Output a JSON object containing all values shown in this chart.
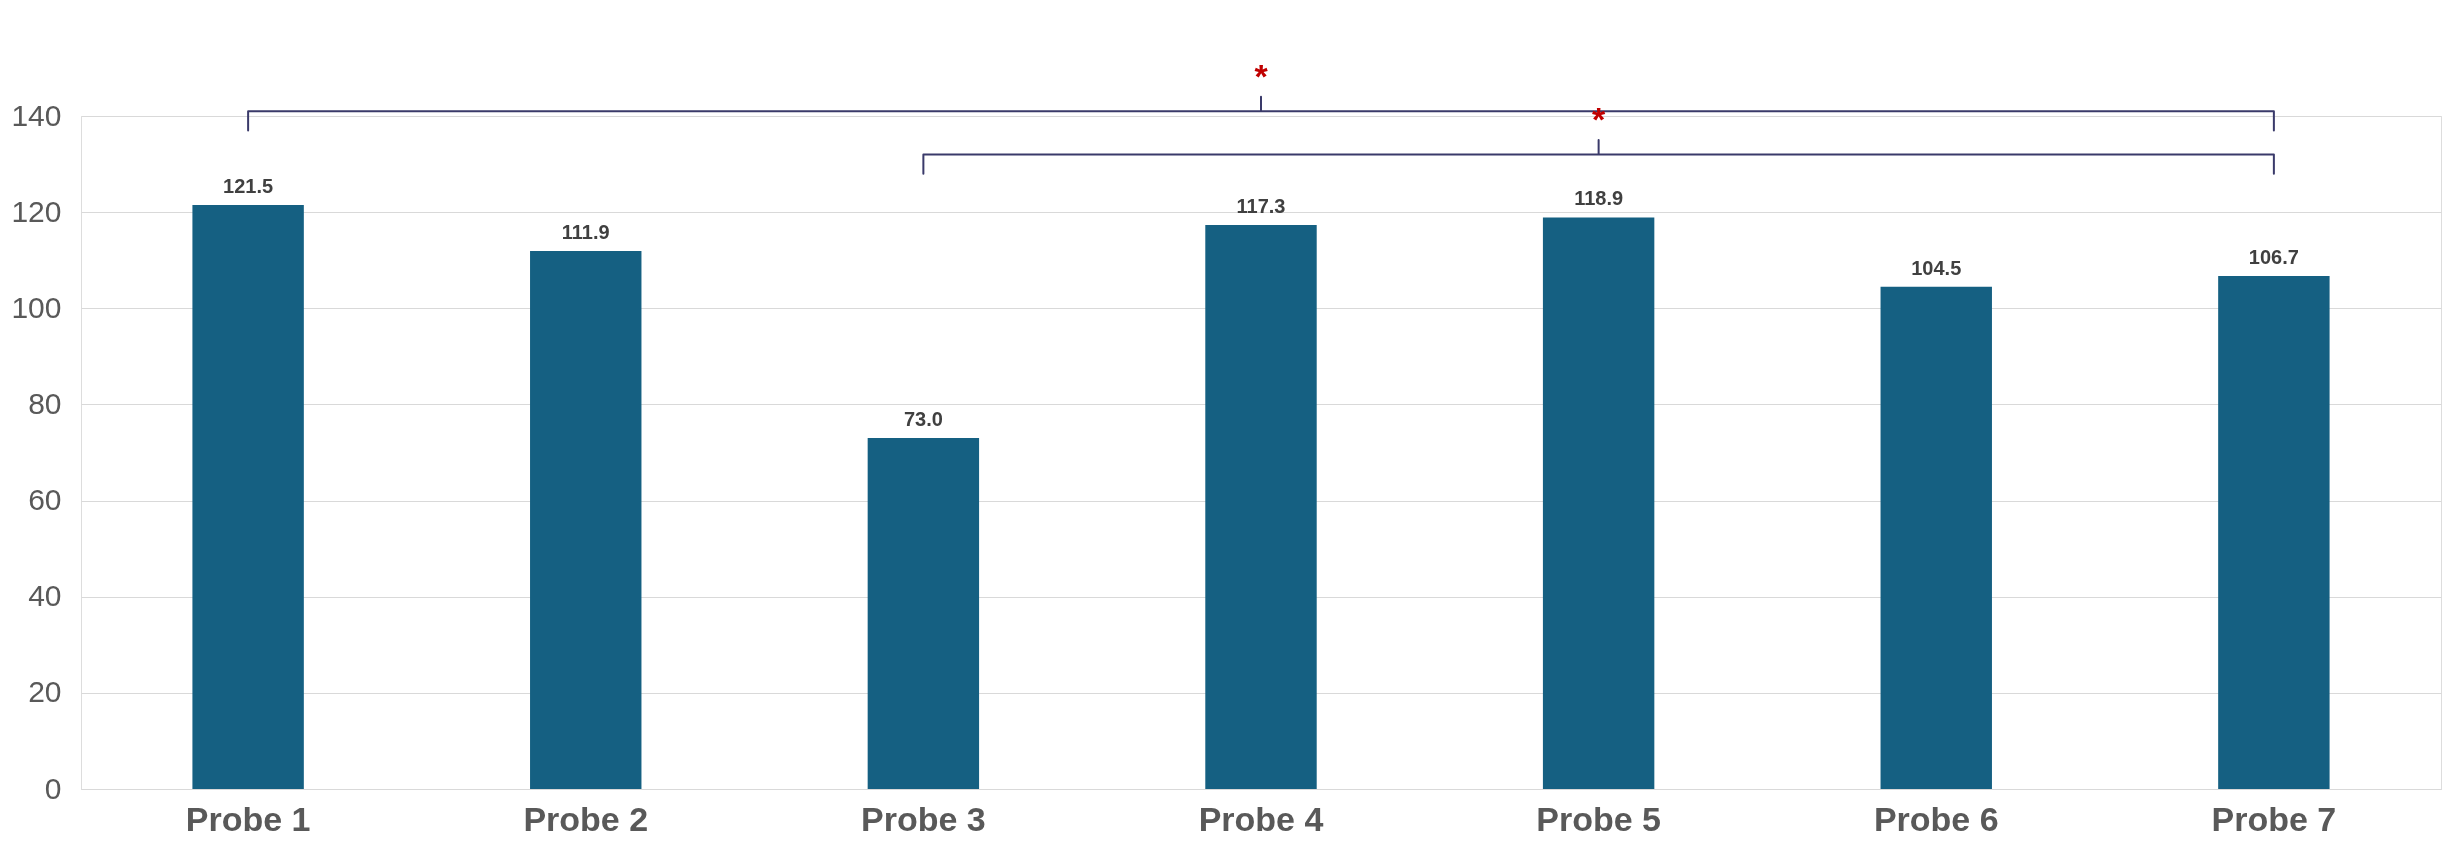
{
  "chart_data": {
    "type": "bar",
    "categories": [
      "Probe 1",
      "Probe 2",
      "Probe 3",
      "Probe 4",
      "Probe 5",
      "Probe 6",
      "Probe 7"
    ],
    "values": [
      121.5,
      111.9,
      73.0,
      117.3,
      118.9,
      104.5,
      106.7
    ],
    "value_labels": [
      "121.5",
      "111.9",
      "73.0",
      "117.3",
      "118.9",
      "104.5",
      "106.7"
    ],
    "color": "#156082",
    "ylim": [
      0,
      140
    ],
    "yticks": [
      0,
      20,
      40,
      60,
      80,
      100,
      120,
      140
    ],
    "grid": "y",
    "annotations": [
      "*",
      "*"
    ]
  }
}
